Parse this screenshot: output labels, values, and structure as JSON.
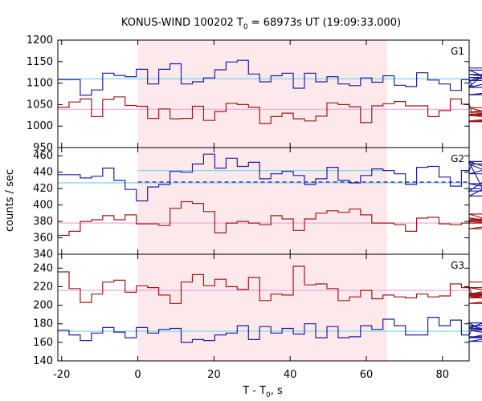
{
  "chart_data": {
    "type": "line",
    "title_main": "KONUS-WIND 100202 T",
    "title_sub": "0",
    "title_rest": " = 68973s UT (19:09:33.000)",
    "xlabel_main": "T - T",
    "xlabel_sub": "0",
    "xlabel_rest": ", s",
    "ylabel": "counts / sec",
    "xlim": [
      -21,
      87
    ],
    "xticks": [
      "-20",
      "0",
      "20",
      "40",
      "60",
      "80"
    ],
    "xtick_values": [
      -20,
      0,
      20,
      40,
      60,
      80
    ],
    "shade_interval": [
      0,
      65.5
    ],
    "shade_color": "#fde8ec",
    "colors": {
      "blue": "#1f1fa0",
      "red": "#a01818",
      "bg_blue": "#7fd4ef",
      "bg_red": "#f0a8e0"
    },
    "bin_start": -21,
    "bin_width": 2.944,
    "panels": [
      {
        "label": "G1",
        "ylim": [
          950,
          1200
        ],
        "yticks": [
          "950",
          "1000",
          "1050",
          "1100",
          "1150",
          "1200"
        ],
        "ytick_values": [
          950,
          1000,
          1050,
          1100,
          1150,
          1200
        ],
        "series": [
          {
            "color": "blue",
            "values": [
              1108,
              1108,
              1072,
              1084,
              1123,
              1118,
              1115,
              1132,
              1098,
              1132,
              1145,
              1098,
              1103,
              1112,
              1131,
              1149,
              1153,
              1121,
              1103,
              1117,
              1123,
              1088,
              1123,
              1103,
              1115,
              1098,
              1094,
              1112,
              1102,
              1117,
              1095,
              1092,
              1124,
              1107,
              1098,
              1083,
              1108,
              1092,
              1120,
              1113,
              1106,
              1130,
              1073,
              1090,
              1135
            ]
          },
          {
            "color": "red",
            "values": [
              1044,
              1056,
              1063,
              1022,
              1062,
              1068,
              1048,
              1046,
              1018,
              1040,
              1017,
              1018,
              1046,
              1013,
              1034,
              1053,
              1050,
              1044,
              1006,
              1022,
              1030,
              1017,
              1012,
              1023,
              1054,
              1050,
              1045,
              1008,
              1047,
              1052,
              1057,
              1047,
              1047,
              1022,
              1036,
              1063,
              1051,
              1024,
              1027,
              1032,
              1043,
              1012,
              1025,
              1010,
              1027
            ]
          }
        ],
        "bg_lines": [
          {
            "color": "bg_blue",
            "value": 1110
          },
          {
            "color": "bg_red",
            "value": 1039
          }
        ],
        "step_bg": []
      },
      {
        "label": "G2",
        "ylim": [
          340,
          470
        ],
        "yticks": [
          "340",
          "360",
          "380",
          "400",
          "420",
          "440",
          "460"
        ],
        "ytick_values": [
          340,
          360,
          380,
          400,
          420,
          440,
          460
        ],
        "series": [
          {
            "color": "blue",
            "values": [
              437,
              437,
              433,
              435,
              445,
              430,
              419,
              405,
              422,
              425,
              441,
              440,
              450,
              462,
              445,
              457,
              447,
              452,
              432,
              438,
              441,
              436,
              425,
              432,
              446,
              430,
              427,
              436,
              444,
              442,
              438,
              425,
              446,
              447,
              434,
              423,
              442,
              452,
              417,
              438,
              450,
              426,
              411,
              453,
              420
            ]
          },
          {
            "color": "red",
            "values": [
              363,
              368,
              380,
              382,
              387,
              382,
              388,
              377,
              377,
              375,
              396,
              404,
              402,
              392,
              366,
              378,
              380,
              378,
              376,
              387,
              383,
              369,
              383,
              390,
              393,
              391,
              395,
              388,
              378,
              378,
              376,
              368,
              384,
              385,
              377,
              376,
              378,
              384,
              382,
              380,
              389,
              371,
              381,
              378,
              382
            ]
          }
        ],
        "bg_lines": [
          {
            "color": "bg_blue",
            "value": 427
          },
          {
            "color": "bg_red",
            "value": 378
          }
        ],
        "step_bg": [
          {
            "color": "bg_blue",
            "x1": 0,
            "x2": 66,
            "value": 442
          },
          {
            "color": "blue",
            "x1": 0,
            "x2": 87,
            "value": 428,
            "dashed": true
          }
        ]
      },
      {
        "label": "G3",
        "ylim": [
          140,
          255
        ],
        "yticks": [
          "140",
          "160",
          "180",
          "200",
          "220",
          "240"
        ],
        "ytick_values": [
          140,
          160,
          180,
          200,
          220,
          240
        ],
        "series": [
          {
            "color": "blue",
            "values": [
              173,
              168,
              162,
              170,
              176,
              171,
              165,
              176,
              170,
              174,
              175,
              160,
              163,
              162,
              168,
              170,
              178,
              163,
              177,
              170,
              175,
              169,
              180,
              165,
              177,
              165,
              166,
              178,
              174,
              185,
              178,
              168,
              168,
              187,
              178,
              184,
              168,
              176,
              181,
              165,
              173,
              165,
              178,
              161,
              175,
              166
            ]
          },
          {
            "color": "red",
            "values": [
              236,
              218,
              203,
              212,
              225,
              227,
              214,
              221,
              219,
              211,
              202,
              225,
              233,
              221,
              228,
              220,
              217,
              230,
              205,
              212,
              211,
              242,
              222,
              223,
              218,
              205,
              209,
              216,
              207,
              211,
              209,
              208,
              212,
              209,
              210,
              223,
              219,
              210,
              208,
              212,
              219,
              210,
              213,
              202,
              211,
              225
            ]
          }
        ],
        "bg_lines": [
          {
            "color": "bg_blue",
            "value": 172
          },
          {
            "color": "bg_red",
            "value": 216
          }
        ],
        "step_bg": []
      }
    ]
  }
}
